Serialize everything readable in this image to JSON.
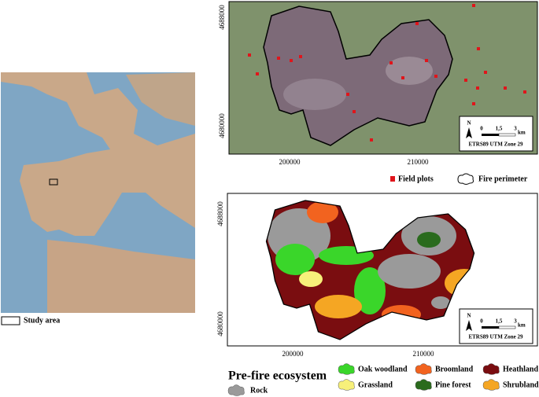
{
  "overview_map": {
    "legend": "Study area"
  },
  "top_map": {
    "y_labels": [
      "4688000",
      "4680000"
    ],
    "x_labels": [
      "200000",
      "210000"
    ],
    "scale": {
      "north": "N",
      "ticks": [
        "0",
        "1,5",
        "3"
      ],
      "unit": "km",
      "crs": "ETRS89 UTM Zone 29"
    }
  },
  "top_legend": {
    "items": [
      {
        "label": "Field plots",
        "color": "#e0151b"
      },
      {
        "label": "Fire perimeter"
      }
    ]
  },
  "bottom_map": {
    "y_labels": [
      "4688000",
      "4680000"
    ],
    "x_labels": [
      "200000",
      "210000"
    ],
    "scale": {
      "north": "N",
      "ticks": [
        "0",
        "1,5",
        "3"
      ],
      "unit": "km",
      "crs": "ETRS89 UTM Zone 29"
    }
  },
  "bottom_legend": {
    "title": "Pre-fire ecosystem",
    "items": [
      {
        "label": "Oak woodland",
        "color": "#3ad62a"
      },
      {
        "label": "Broomland",
        "color": "#f2631f"
      },
      {
        "label": "Heathland",
        "color": "#7a0d10"
      },
      {
        "label": "Grassland",
        "color": "#f7f07a"
      },
      {
        "label": "Pine forest",
        "color": "#2a6b1d"
      },
      {
        "label": "Shrubland",
        "color": "#f5a623"
      },
      {
        "label": "Rock",
        "color": "#9a9a9a"
      }
    ]
  }
}
